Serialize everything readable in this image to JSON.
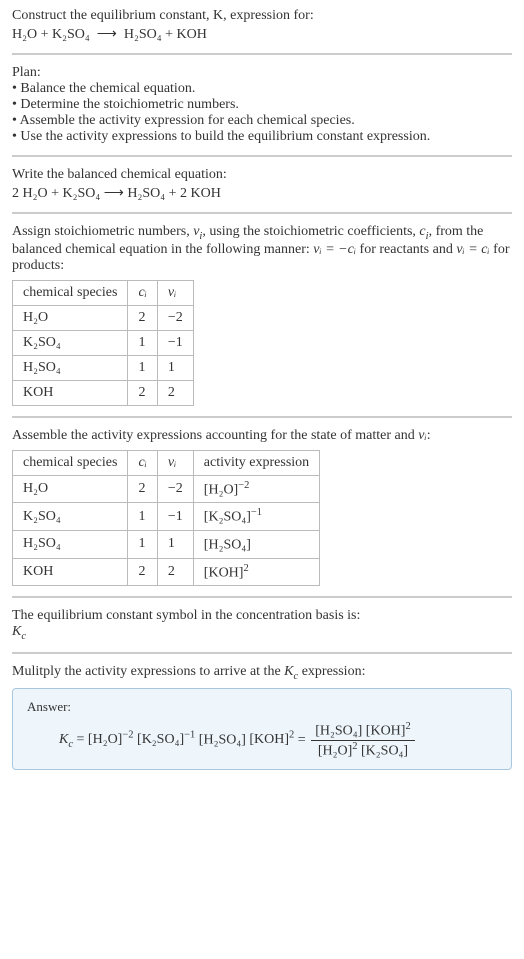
{
  "step0": {
    "line1": "Construct the equilibrium constant, K, expression for:",
    "eq_lhs": "H₂O + K₂SO₄",
    "eq_arrow": "⟶",
    "eq_rhs": "H₂SO₄ + KOH"
  },
  "plan": {
    "title": "Plan:",
    "b1": "• Balance the chemical equation.",
    "b2": "• Determine the stoichiometric numbers.",
    "b3": "• Assemble the activity expression for each chemical species.",
    "b4": "• Use the activity expressions to build the equilibrium constant expression."
  },
  "balanced": {
    "title": "Write the balanced chemical equation:",
    "eq": "2 H₂O + K₂SO₄  ⟶  H₂SO₄ + 2 KOH"
  },
  "assign": {
    "text_a": "Assign stoichiometric numbers, ",
    "nu": "ν",
    "i": "i",
    "text_b": ", using the stoichiometric coefficients, ",
    "c": "c",
    "text_c": ", from the balanced chemical equation in the following manner: ",
    "eq1": "νᵢ = −cᵢ",
    "text_d": " for reactants and ",
    "eq2": "νᵢ = cᵢ",
    "text_e": " for products:"
  },
  "table1": {
    "h_species": "chemical species",
    "h_ci": "cᵢ",
    "h_vi": "νᵢ",
    "rows": [
      {
        "sp": "H₂O",
        "c": "2",
        "v": "−2"
      },
      {
        "sp": "K₂SO₄",
        "c": "1",
        "v": "−1"
      },
      {
        "sp": "H₂SO₄",
        "c": "1",
        "v": "1"
      },
      {
        "sp": "KOH",
        "c": "2",
        "v": "2"
      }
    ]
  },
  "assemble": {
    "text_a": "Assemble the activity expressions accounting for the state of matter and ",
    "nu_i": "νᵢ",
    "text_b": ":"
  },
  "table2": {
    "h_species": "chemical species",
    "h_ci": "cᵢ",
    "h_vi": "νᵢ",
    "h_act": "activity expression",
    "rows": [
      {
        "sp": "H₂O",
        "c": "2",
        "v": "−2",
        "act_base": "[H₂O]",
        "act_exp": "−2"
      },
      {
        "sp": "K₂SO₄",
        "c": "1",
        "v": "−1",
        "act_base": "[K₂SO₄]",
        "act_exp": "−1"
      },
      {
        "sp": "H₂SO₄",
        "c": "1",
        "v": "1",
        "act_base": "[H₂SO₄]",
        "act_exp": ""
      },
      {
        "sp": "KOH",
        "c": "2",
        "v": "2",
        "act_base": "[KOH]",
        "act_exp": "2"
      }
    ]
  },
  "kc_symbol": {
    "line1": "The equilibrium constant symbol in the concentration basis is:",
    "kc": "K",
    "c": "c"
  },
  "multiply": {
    "text_a": "Mulitply the activity expressions to arrive at the ",
    "kc": "K",
    "c": "c",
    "text_b": " expression:"
  },
  "answer": {
    "label": "Answer:",
    "lhs_K": "K",
    "lhs_c": "c",
    "eq": " = ",
    "t1_base": "[H₂O]",
    "t1_exp": "−2",
    "t2_base": "[K₂SO₄]",
    "t2_exp": "−1",
    "t3_base": "[H₂SO₄]",
    "t4_base": "[KOH]",
    "t4_exp": "2",
    "eq2": " = ",
    "num1_base": "[H₂SO₄]",
    "num2_base": "[KOH]",
    "num2_exp": "2",
    "den1_base": "[H₂O]",
    "den1_exp": "2",
    "den2_base": "[K₂SO₄]"
  }
}
